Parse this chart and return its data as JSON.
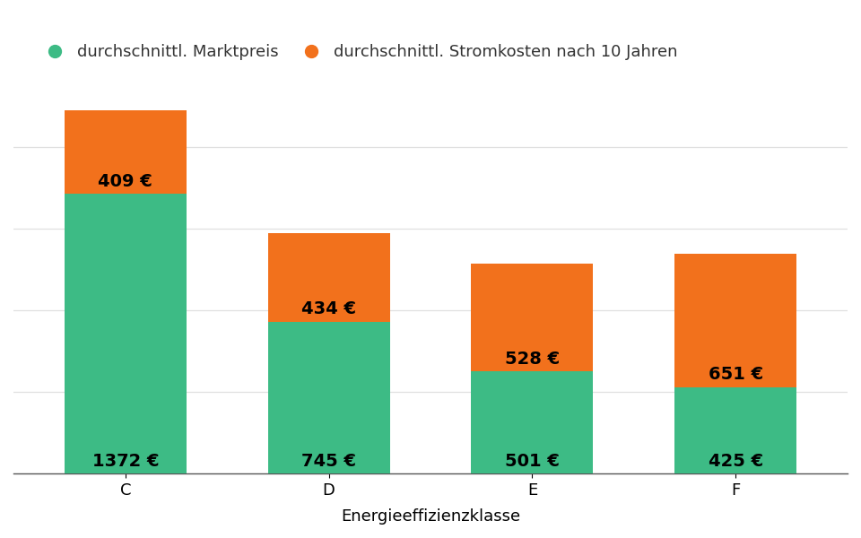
{
  "categories": [
    "C",
    "D",
    "E",
    "F"
  ],
  "market_prices": [
    1372,
    745,
    501,
    425
  ],
  "electricity_costs": [
    409,
    434,
    528,
    651
  ],
  "bar_color_green": "#3dbb85",
  "bar_color_orange": "#f2711c",
  "background_color": "#ffffff",
  "grid_color": "#e0e0e0",
  "xlabel": "Energieeffizienzklasse",
  "legend_label_green": "durchschnittl. Marktpreis",
  "legend_label_orange": "durchschnittl. Stromkosten nach 10 Jahren",
  "label_fontsize": 14,
  "tick_fontsize": 13,
  "legend_fontsize": 13,
  "xlabel_fontsize": 13,
  "bar_width": 0.6,
  "ylim": [
    0,
    1900
  ]
}
